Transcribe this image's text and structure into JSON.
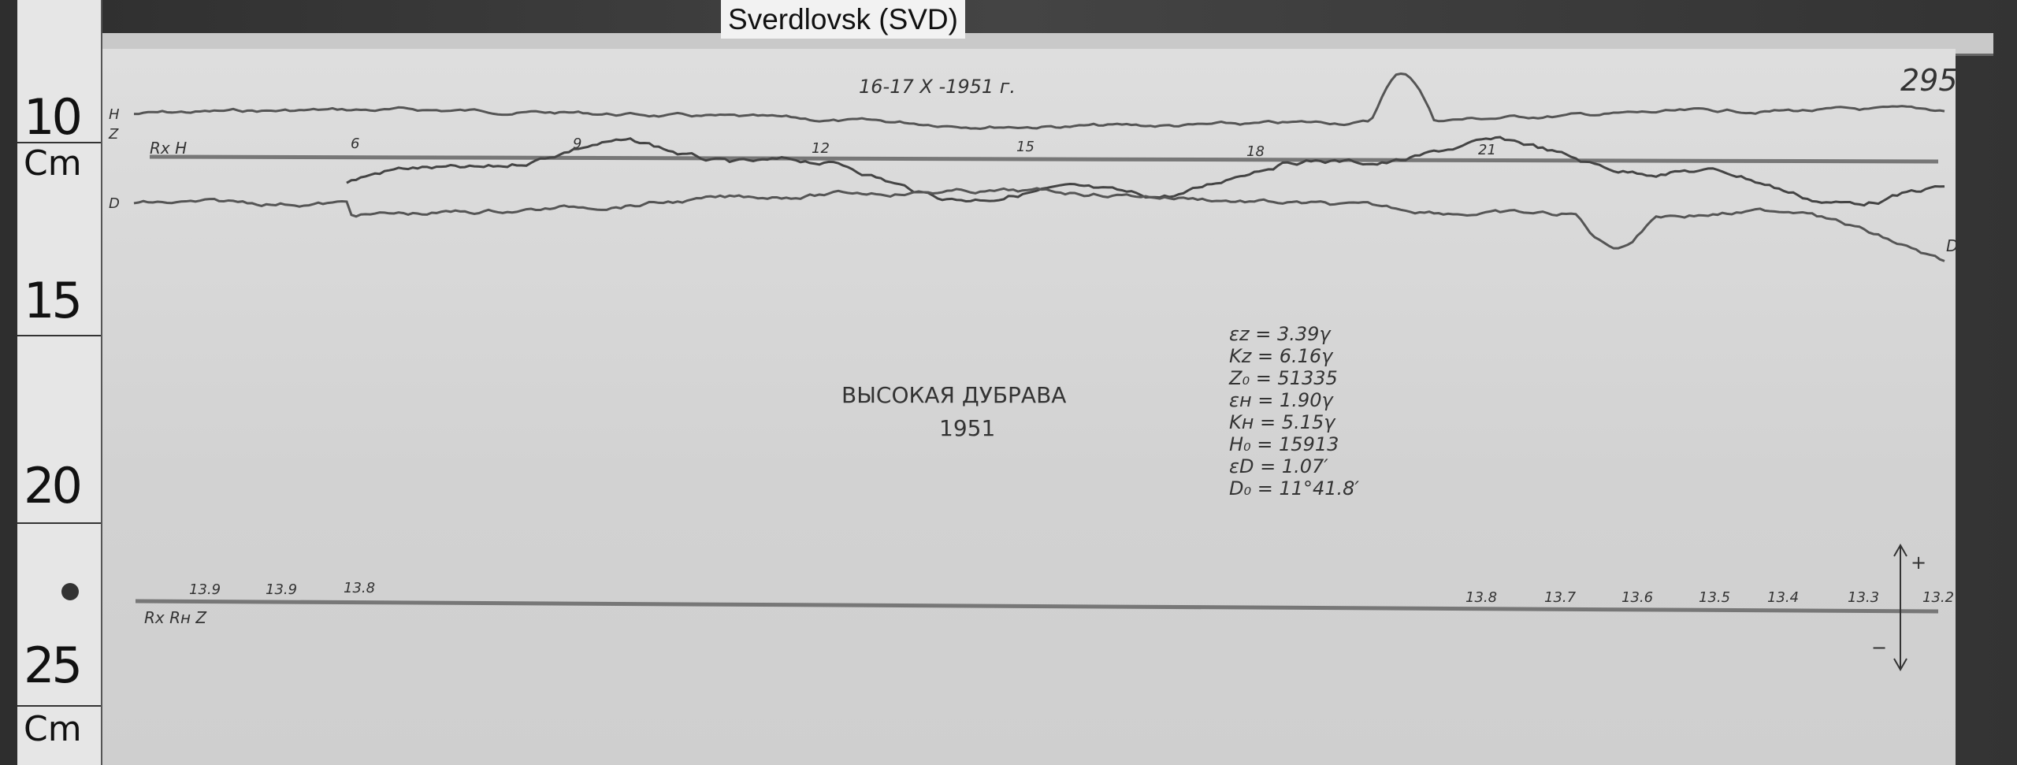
{
  "label": {
    "station": "Sverdlovsk (SVD)"
  },
  "ruler": {
    "marks": [
      "10",
      "Cm",
      "15",
      "20",
      "25",
      "Cm"
    ]
  },
  "sheet": {
    "number": "295",
    "date": "16-17 X -1951 г.",
    "station_name": "ВЫСОКАЯ ДУБРАВА",
    "year": "1951",
    "trace_labels": {
      "h": "H",
      "z": "Z",
      "d": "D",
      "rx": "Rx H",
      "base": "Rx Rн Z"
    },
    "hour_marks": [
      "6",
      "9",
      "12",
      "15",
      "18",
      "21"
    ],
    "constants": [
      "εz = 3.39γ",
      "Kz = 6.16γ",
      "Z₀ = 51335",
      "εн = 1.90γ",
      "Kн = 5.15γ",
      "H₀ = 15913",
      "εD = 1.07′",
      "D₀ = 11°41.8′"
    ],
    "temperature_left": [
      "13.9",
      "13.9",
      "13.8"
    ],
    "temperature_right": [
      "13.8",
      "13.7",
      "13.6",
      "13.5",
      "13.4",
      "13.3",
      "13.2"
    ],
    "arrow_plus": "+",
    "arrow_minus": "−"
  }
}
